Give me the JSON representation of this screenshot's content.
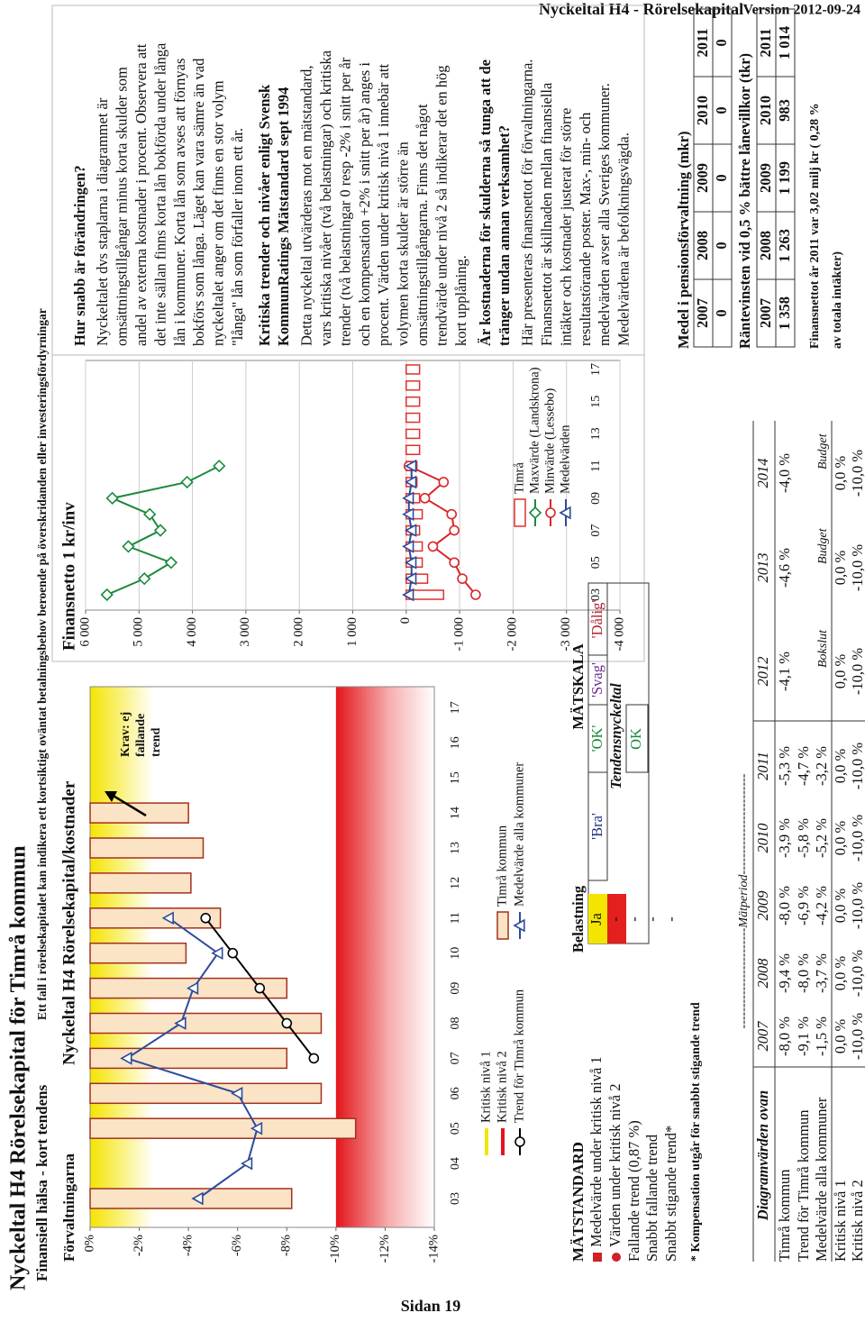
{
  "page_header": {
    "left": "Nyckeltal H4 - Rörelsekapital",
    "right": "Version 2012-09-24"
  },
  "footer": "Sidan 19",
  "header": {
    "title": "Nyckeltal H4 Rörelsekapital för Timrå kommun",
    "subtitle": "Finansiell hälsa - kort tendens",
    "description": "Ett fall i rörelsekapitalet kan indikera ett kortsiktigt oväntat betalningsbehov beroende på överskridanden eller investeringsfördyrningar"
  },
  "chart_data": [
    {
      "type": "bar",
      "section": "Förvaltningarna",
      "title": "Nyckeltal H4 Rörelsekapital/kostnader",
      "categories": [
        "03",
        "04",
        "05",
        "06",
        "07",
        "08",
        "09",
        "10",
        "11",
        "12",
        "13",
        "14",
        "15",
        "16",
        "17"
      ],
      "ylim": [
        -14,
        0
      ],
      "yticks": [
        {
          "value": 0,
          "label": "0%"
        },
        {
          "value": -2,
          "label": "-2%"
        },
        {
          "value": -4,
          "label": "-4%"
        },
        {
          "value": -6,
          "label": "-6%"
        },
        {
          "value": -8,
          "label": "-8%"
        },
        {
          "value": -10,
          "label": "-10%"
        },
        {
          "value": -12,
          "label": "-12%"
        },
        {
          "value": -14,
          "label": "-14%"
        }
      ],
      "grid": false,
      "critical": [
        {
          "name": "Kritisk nivå 1",
          "value": 0,
          "color": "#f3e500"
        },
        {
          "name": "Kritisk nivå 2",
          "value": -10,
          "color": "#e3161b"
        }
      ],
      "series": [
        {
          "name": "Timrå kommun",
          "kind": "bar",
          "color": "#fbe3c6",
          "edgecolor": "#a3301e",
          "values": [
            -8.2,
            null,
            -10.8,
            -9.4,
            -8.0,
            -9.4,
            -8.0,
            -3.9,
            -5.3,
            -4.1,
            -4.6,
            -4.0,
            null,
            null,
            null
          ]
        },
        {
          "name": "Medelvärde alla kommuner",
          "kind": "line",
          "marker": "triangle",
          "color": "#2c4b9c",
          "values": [
            -4.4,
            -6.4,
            -6.8,
            -6.0,
            -1.5,
            -3.7,
            -4.2,
            -5.2,
            -3.2,
            null,
            null,
            null,
            null,
            null,
            null
          ]
        },
        {
          "name": "Trend för Timrå kommun",
          "kind": "line",
          "marker": "circle",
          "color": "#000000",
          "values": [
            null,
            null,
            null,
            null,
            -9.1,
            -8.0,
            -6.9,
            -5.8,
            -4.7,
            null,
            null,
            null,
            null,
            null,
            null
          ]
        }
      ],
      "annotation": [
        "Krav: ej",
        "fallande",
        "trend"
      ]
    },
    {
      "type": "bar",
      "title": "Finansnetto 1 kr/inv",
      "categories": [
        "03",
        null,
        "05",
        null,
        "07",
        null,
        "09",
        null,
        "11",
        null,
        "13",
        null,
        "15",
        null,
        "17"
      ],
      "ylim": [
        -4000,
        6000
      ],
      "yticks": [
        {
          "value": 6000,
          "label": "6 000"
        },
        {
          "value": 5000,
          "label": "5 000"
        },
        {
          "value": 4000,
          "label": "4 000"
        },
        {
          "value": 3000,
          "label": "3 000"
        },
        {
          "value": 2000,
          "label": "2 000"
        },
        {
          "value": 1000,
          "label": "1 000"
        },
        0,
        {
          "value": -1000,
          "label": "-1 000"
        },
        {
          "value": -2000,
          "label": "-2 000"
        },
        {
          "value": -3000,
          "label": "-3 000"
        },
        {
          "value": -4000,
          "label": "-4 000"
        }
      ],
      "grid": true,
      "series": [
        {
          "name": "Timrå",
          "kind": "bar",
          "color": "#ffffff",
          "edgecolor": "#e0302a",
          "values": [
            -700,
            -400,
            -300,
            -300,
            -250,
            -300,
            -250,
            -200,
            -200,
            -250,
            -250,
            -250,
            -250,
            -250,
            -250
          ]
        },
        {
          "name": "Maxvärde (Landskrona)",
          "kind": "line",
          "marker": "diamond",
          "color": "#1b8a3c",
          "values": [
            5600,
            4900,
            4400,
            5200,
            4600,
            4800,
            5500,
            4100,
            3500,
            null,
            null,
            null,
            null,
            null,
            null
          ]
        },
        {
          "name": "Minvärde (Lessebo)",
          "kind": "line",
          "marker": "circle",
          "color": "#d9262a",
          "values": [
            -1300,
            -1050,
            -900,
            -500,
            -900,
            -850,
            -350,
            -700,
            -50,
            null,
            null,
            null,
            null,
            null,
            null
          ]
        },
        {
          "name": "Medelvärden",
          "kind": "line",
          "marker": "triangle",
          "color": "#2c4b9c",
          "values": [
            -50,
            -100,
            -100,
            -50,
            -100,
            -50,
            -50,
            -100,
            -100,
            null,
            null,
            null,
            null,
            null,
            null
          ]
        }
      ]
    }
  ],
  "text_panel": [
    {
      "heading": [
        "Hur snabb är förändringen?"
      ],
      "lines": [
        "Nyckeltalet dvs staplarna i diagrammet är",
        "omsättningstillgångar minus korta skulder som",
        "andel av externa kostnader i procent. Observera att",
        "det inte sällan finns korta lån bokförda under långa",
        "lån i kommuner. Korta lån som avses att förnyas",
        "bokförs som långa. Läget kan vara sämre än vad",
        "nyckeltalet anger om det finns en stor volym",
        "\"långa\" lån som förfaller inom ett år."
      ]
    },
    {
      "heading": [
        "Kritiska trender och nivåer enligt Svensk",
        "KommunRatings Mätstandard sept 1994"
      ],
      "lines": [
        "Detta nyckeltal utvärderas mot en mätstandard,",
        "vars kritiska nivåer (två belastningar) och kritiska",
        "trender (två belastningar 0 resp -2% i snitt per år",
        "och en kompensation +2% i snitt per år) anges i",
        "procent. Värden under kritisk nivå 1 innebär att",
        "volymen korta skulder är större än",
        "omsättningstillgångarna. Finns det något",
        "trendvärde under nivå 2 så indikerar det en hög",
        "kort upplåning."
      ]
    },
    {
      "heading": [
        "Är kostnaderna för skulderna så tunga att de",
        "tränger undan annan verksamhet?"
      ],
      "lines": [
        "Här presenteras finansnettot för förvaltningarna.",
        "Finansnettot är skillnaden mellan finansiella",
        "intäkter och kostnader justerat för större",
        "resultatstörande poster. Max-, min- och",
        "medelvärden avser alla Sveriges kommuner.",
        "Medelvärdena är befolkningsvägda."
      ]
    }
  ],
  "matstandard": {
    "title": "MÄTSTANDARD",
    "col_load": "Belastning",
    "col_scale": "MÄTSKALA",
    "rows": [
      [
        "Medelvärde under kritisk nivå 1",
        "Ja"
      ],
      [
        "Värden under kritisk nivå 2",
        "-"
      ],
      [
        "Fallande trend (0,87 %)",
        "-"
      ],
      [
        "Snabbt fallande trend",
        "-"
      ],
      [
        "Snabbt stigande trend*",
        "-"
      ]
    ],
    "scale": [
      "'Bra'",
      "'OK'",
      "'Svag'",
      "'Dålig'"
    ],
    "scale_colors": [
      "#1f2f7a",
      "#1b8a3c",
      "#6a2c8c",
      "#b0202a"
    ],
    "tendens": "Tendensnyckeltal",
    "tendens_value": "OK",
    "footnote": "* Kompensation utgår för snabbt stigande trend"
  },
  "diagram_table": {
    "period": "------------------------Mätperiod------------------------",
    "title": "Diagramvärden ovan",
    "years": [
      "2007",
      "2008",
      "2009",
      "2010",
      "2011",
      "2012",
      "2013",
      "2014"
    ],
    "rows": [
      {
        "label": "Timrå kommun",
        "values": [
          "-8,0 %",
          "-9,4 %",
          "-8,0 %",
          "-3,9 %",
          "-5,3 %",
          "-4,1 %",
          "-4,6 %",
          "-4,0 %"
        ]
      },
      {
        "label": "Trend för Timrå kommun",
        "values": [
          "-9,1 %",
          "-8,0 %",
          "-6,9 %",
          "-5,8 %",
          "-4,7 %"
        ]
      },
      {
        "label": "Medelvärde alla kommuner",
        "values": [
          "-1,5 %",
          "-3,7 %",
          "-4,2 %",
          "-5,2 %",
          "-3,2 %"
        ]
      },
      {
        "label": "Kritisk nivå 1",
        "values": [
          "0,0 %",
          "0,0 %",
          "0,0 %",
          "0,0 %",
          "0,0 %",
          "0,0 %",
          "0,0 %",
          "0,0 %"
        ]
      },
      {
        "label": "Kritisk nivå 2",
        "values": [
          "-10,0 %",
          "-10,0 %",
          "-10,0 %",
          "-10,0 %",
          "-10,0 %",
          "-10,0 %",
          "-10,0 %",
          "-10,0 %"
        ]
      }
    ],
    "notes": [
      "Bokslut",
      "Budget",
      "Budget"
    ]
  },
  "pension": {
    "title": "Medel i pensionsförvaltning (mkr)",
    "years": [
      "2007",
      "2008",
      "2009",
      "2010",
      "2011"
    ],
    "values": [
      "0",
      "0",
      "0",
      "0",
      "0"
    ]
  },
  "interest": {
    "title": "Räntevinsten vid 0,5 % bättre lånevillkor (tkr)",
    "years": [
      "2007",
      "2008",
      "2009",
      "2010",
      "2011"
    ],
    "values": [
      "1 358",
      "1 263",
      "1 199",
      "983",
      "1 014"
    ]
  },
  "finance_note": [
    "Finansnettot år 2011 var 3,02 milj kr ( 0,28 %",
    "av totala intäkter)"
  ]
}
